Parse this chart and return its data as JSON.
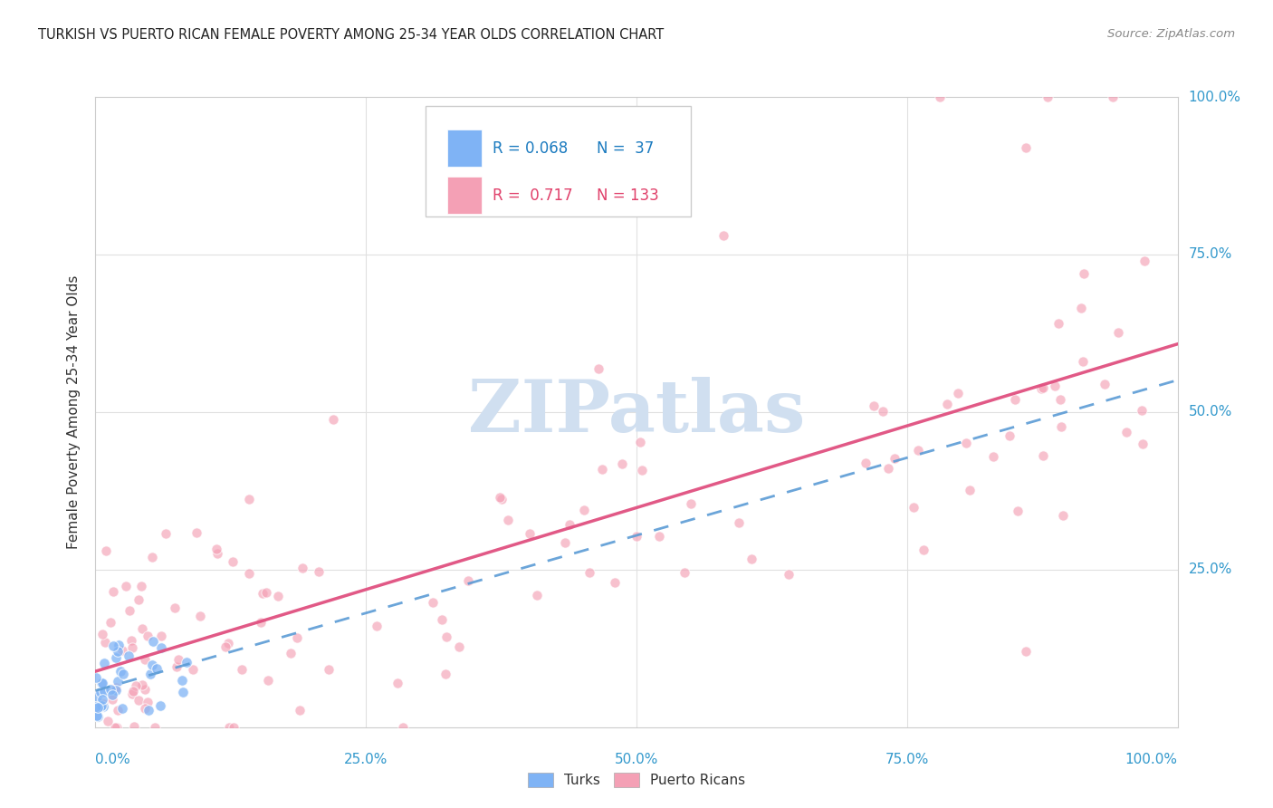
{
  "title": "TURKISH VS PUERTO RICAN FEMALE POVERTY AMONG 25-34 YEAR OLDS CORRELATION CHART",
  "source": "Source: ZipAtlas.com",
  "ylabel": "Female Poverty Among 25-34 Year Olds",
  "turks_R": 0.068,
  "turks_N": 37,
  "pr_R": 0.717,
  "pr_N": 133,
  "turks_color": "#7fb3f5",
  "pr_color": "#f4a0b5",
  "turks_line_color": "#5b9bd5",
  "pr_line_color": "#e05080",
  "background_color": "#ffffff",
  "watermark_color": "#d0dff0",
  "legend_R_turks_color": "#1a7abf",
  "legend_R_pr_color": "#e0406a",
  "legend_N_turks_color": "#1a7abf",
  "legend_N_pr_color": "#e0406a"
}
